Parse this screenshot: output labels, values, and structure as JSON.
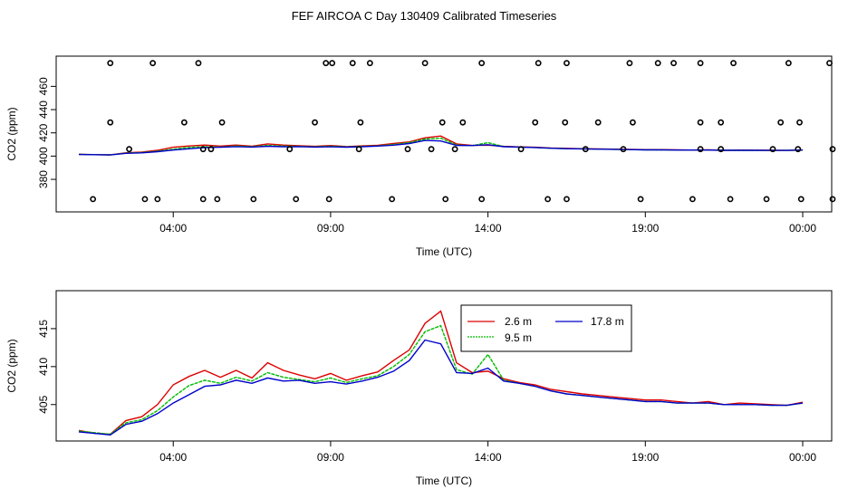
{
  "title": "FEF AIRCOA C  Day 130409  Calibrated Timeseries",
  "colors": {
    "s2_6": "#dd0000",
    "s9_5": "#00bb00",
    "s17_8": "#0000cc",
    "flags": "#000000"
  },
  "chart_data": [
    {
      "type": "scatter+line",
      "xlabel": "Time (UTC)",
      "ylabel": "CO2 (ppm)",
      "xlim": [
        0,
        24
      ],
      "ylim": [
        352,
        486
      ],
      "xticks": [
        3,
        8,
        13,
        18,
        23
      ],
      "xtick_labels": [
        "04:00",
        "09:00",
        "14:00",
        "19:00",
        "00:00"
      ],
      "yticks": [
        380,
        400,
        420,
        440,
        460
      ],
      "ytick_labels": [
        "380",
        "400",
        "420",
        "440",
        "460"
      ],
      "flag_points": {
        "x": [
          0.45,
          2.1,
          2.5,
          3.95,
          4.4,
          5.55,
          6.9,
          7.95,
          9.95,
          11.65,
          12.8,
          14.9,
          15.5,
          17.85,
          19.5,
          20.7,
          21.85,
          22.95,
          23.95,
          1.6,
          3.95,
          4.2,
          6.7,
          8.9,
          10.45,
          11.2,
          11.95,
          14.05,
          16.1,
          17.3,
          19.75,
          20.4,
          22.05,
          22.85,
          23.95,
          1.0,
          3.35,
          4.55,
          7.5,
          8.95,
          11.55,
          12.2,
          14.5,
          15.45,
          16.5,
          17.6,
          19.75,
          20.4,
          22.3,
          22.9,
          1.0,
          2.35,
          3.8,
          7.85,
          8.05,
          8.7,
          9.25,
          11.0,
          12.8,
          14.6,
          15.5,
          17.5,
          18.4,
          18.9,
          19.75,
          20.8,
          22.55,
          23.85
        ],
        "y": [
          363,
          363,
          363,
          363,
          363,
          363,
          363,
          363,
          363,
          363,
          363,
          363,
          363,
          363,
          363,
          363,
          363,
          363,
          363,
          406,
          406,
          406,
          406,
          406,
          406,
          406,
          406,
          406,
          406,
          406,
          406,
          406,
          406,
          406,
          406,
          429,
          429,
          429,
          429,
          429,
          429,
          429,
          429,
          429,
          429,
          429,
          429,
          429,
          429,
          429,
          480,
          480,
          480,
          480,
          480,
          480,
          480,
          480,
          480,
          480,
          480,
          480,
          480,
          480,
          480,
          480,
          480,
          480
        ]
      },
      "series_ref": "shared"
    },
    {
      "type": "line",
      "xlabel": "Time (UTC)",
      "ylabel": "CO2 (ppm)",
      "xlim": [
        0,
        24
      ],
      "ylim": [
        400.2,
        420
      ],
      "xticks": [
        3,
        8,
        13,
        18,
        23
      ],
      "xtick_labels": [
        "04:00",
        "09:00",
        "14:00",
        "19:00",
        "00:00"
      ],
      "yticks": [
        405,
        410,
        415
      ],
      "ytick_labels": [
        "405",
        "410",
        "415"
      ],
      "legend": {
        "placement": "top-center",
        "entries": [
          "2.6 m",
          "9.5 m",
          "17.8 m"
        ]
      },
      "series_ref": "shared"
    }
  ],
  "series": [
    {
      "name": "2.6 m",
      "x": [
        0,
        0.5,
        1,
        1.5,
        2,
        2.5,
        3,
        3.5,
        4,
        4.5,
        5,
        5.5,
        6,
        6.5,
        7,
        7.5,
        8,
        8.5,
        9,
        9.5,
        10,
        10.5,
        11,
        11.5,
        12,
        12.5,
        13,
        13.5,
        14,
        14.5,
        15,
        15.5,
        16,
        16.5,
        17,
        17.5,
        18,
        18.5,
        19,
        19.5,
        20,
        20.5,
        21,
        21.5,
        22,
        22.5,
        23
      ],
      "y": [
        401.6,
        401.2,
        401.1,
        402.9,
        403.4,
        405.0,
        407.6,
        408.7,
        409.5,
        408.6,
        409.5,
        408.5,
        410.5,
        409.5,
        408.9,
        408.4,
        409.1,
        408.2,
        408.8,
        409.3,
        410.8,
        412.2,
        415.7,
        417.3,
        410.5,
        409.2,
        409.4,
        408.4,
        407.9,
        407.6,
        407.0,
        406.7,
        406.4,
        406.2,
        406.0,
        405.8,
        405.6,
        405.6,
        405.4,
        405.2,
        405.4,
        405.0,
        405.2,
        405.1,
        405.0,
        404.9,
        405.3
      ]
    },
    {
      "name": "9.5 m",
      "x": [
        0,
        0.5,
        1,
        1.5,
        2,
        2.5,
        3,
        3.5,
        4,
        4.5,
        5,
        5.5,
        6,
        6.5,
        7,
        7.5,
        8,
        8.5,
        9,
        9.5,
        10,
        10.5,
        11,
        11.5,
        12,
        12.5,
        13,
        13.5,
        14,
        14.5,
        15,
        15.5,
        16,
        16.5,
        17,
        17.5,
        18,
        18.5,
        19,
        19.5,
        20,
        20.5,
        21,
        21.5,
        22,
        22.5,
        23
      ],
      "y": [
        401.5,
        401.3,
        401.1,
        402.6,
        403.0,
        404.2,
        406.0,
        407.5,
        408.2,
        407.8,
        408.6,
        408.1,
        409.2,
        408.6,
        408.3,
        408.0,
        408.5,
        407.9,
        408.4,
        408.8,
        410.0,
        411.6,
        414.6,
        415.4,
        409.6,
        409.0,
        411.6,
        408.2,
        407.8,
        407.4,
        406.8,
        406.4,
        406.2,
        406.0,
        405.8,
        405.6,
        405.4,
        405.4,
        405.2,
        405.2,
        405.2,
        405.0,
        405.0,
        405.0,
        404.9,
        404.9,
        405.2
      ]
    },
    {
      "name": "17.8 m",
      "x": [
        0,
        0.5,
        1,
        1.5,
        2,
        2.5,
        3,
        3.5,
        4,
        4.5,
        5,
        5.5,
        6,
        6.5,
        7,
        7.5,
        8,
        8.5,
        9,
        9.5,
        10,
        10.5,
        11,
        11.5,
        12,
        12.5,
        13,
        13.5,
        14,
        14.5,
        15,
        15.5,
        16,
        16.5,
        17,
        17.5,
        18,
        18.5,
        19,
        19.5,
        20,
        20.5,
        21,
        21.5,
        22,
        22.5,
        23
      ],
      "y": [
        401.4,
        401.2,
        401.0,
        402.4,
        402.8,
        403.8,
        405.2,
        406.3,
        407.4,
        407.6,
        408.2,
        407.8,
        408.5,
        408.1,
        408.2,
        407.8,
        408.0,
        407.7,
        408.1,
        408.6,
        409.4,
        410.8,
        413.5,
        413.0,
        409.2,
        409.1,
        409.8,
        408.1,
        407.8,
        407.4,
        406.8,
        406.4,
        406.2,
        406.0,
        405.8,
        405.6,
        405.4,
        405.4,
        405.2,
        405.2,
        405.2,
        405.0,
        405.0,
        405.0,
        404.9,
        404.9,
        405.2
      ]
    }
  ]
}
